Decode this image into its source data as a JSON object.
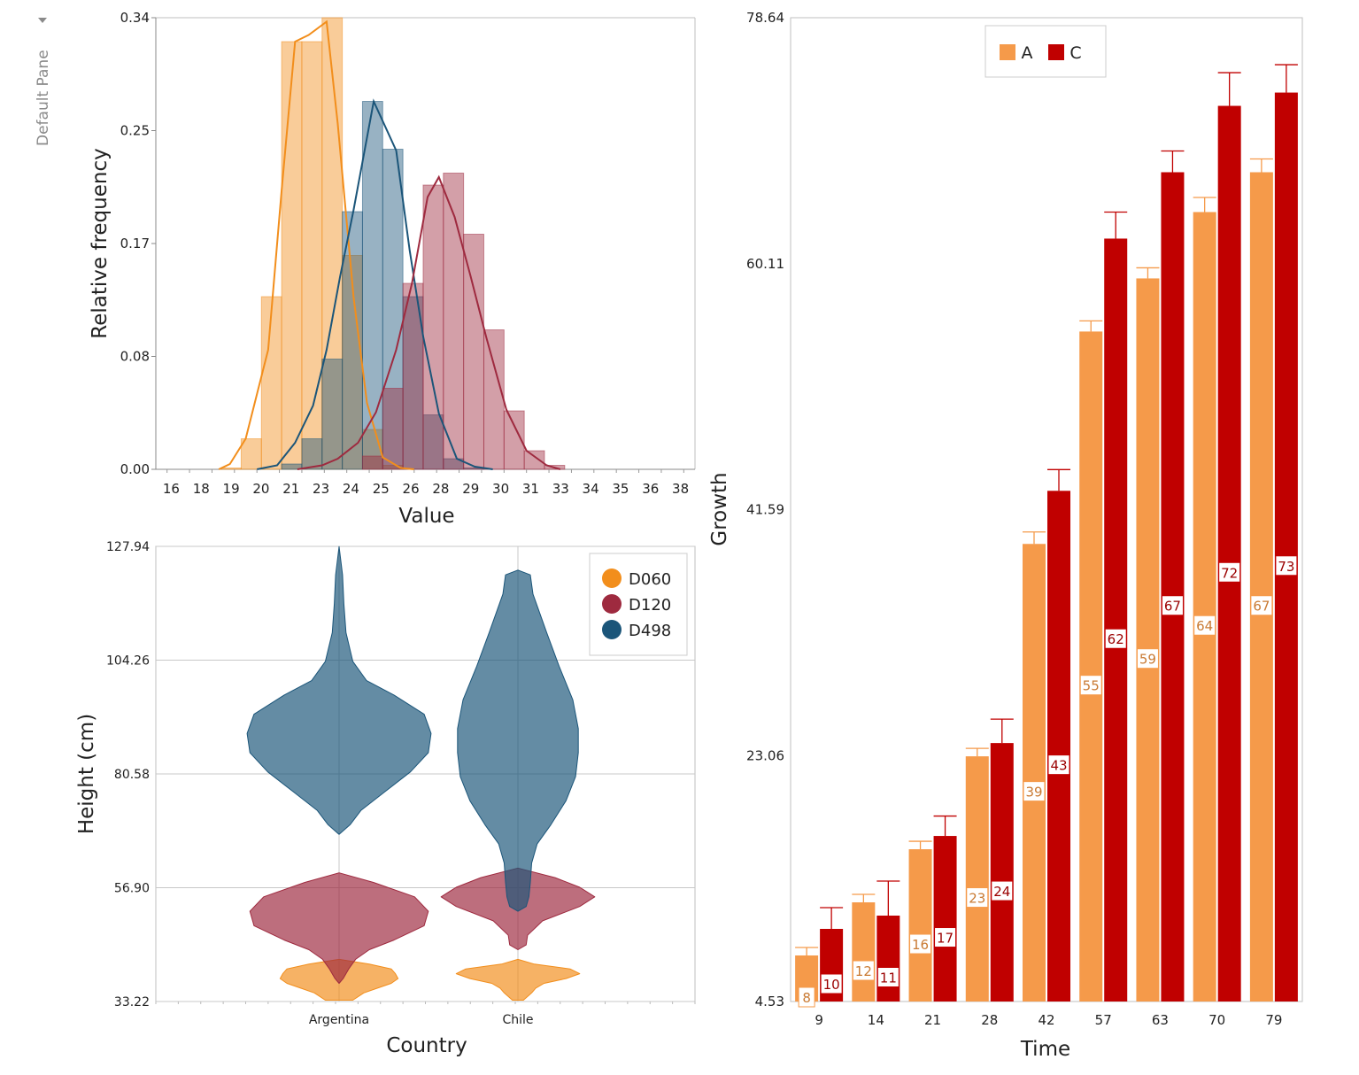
{
  "pane": {
    "label": "Default Pane",
    "dropdown_icon": "triangle-down-icon"
  },
  "chart_data": [
    {
      "id": "histogram",
      "type": "histogram",
      "xlabel": "Value",
      "ylabel": "Relative frequency",
      "xlim": [
        15,
        39
      ],
      "ylim": [
        0,
        0.34
      ],
      "y_ticks": [
        "0.00",
        "0.08",
        "0.17",
        "0.25",
        "0.34"
      ],
      "x_ticks": [
        "16",
        "18",
        "19",
        "20",
        "21",
        "23",
        "24",
        "25",
        "26",
        "28",
        "29",
        "30",
        "31",
        "33",
        "34",
        "35",
        "36",
        "38"
      ],
      "bin_width": 0.9,
      "series": [
        {
          "name": "D060",
          "color": "#f28e1c",
          "bins": [
            [
              17.9,
              0.001
            ],
            [
              18.8,
              0.023
            ],
            [
              19.7,
              0.13
            ],
            [
              20.6,
              0.322
            ],
            [
              21.5,
              0.322
            ],
            [
              22.4,
              0.34
            ],
            [
              23.3,
              0.161
            ],
            [
              24.2,
              0.03
            ],
            [
              25.1,
              0.003
            ]
          ],
          "curve": [
            [
              17.8,
              0.0
            ],
            [
              18.3,
              0.004
            ],
            [
              19.0,
              0.023
            ],
            [
              20.0,
              0.09
            ],
            [
              20.6,
              0.21
            ],
            [
              21.2,
              0.322
            ],
            [
              21.8,
              0.327
            ],
            [
              22.6,
              0.337
            ],
            [
              23.1,
              0.26
            ],
            [
              23.8,
              0.13
            ],
            [
              24.4,
              0.05
            ],
            [
              25.1,
              0.009
            ],
            [
              25.9,
              0.001
            ],
            [
              26.5,
              0.0
            ]
          ]
        },
        {
          "name": "D498",
          "color": "#1b5579",
          "bins": [
            [
              20.6,
              0.004
            ],
            [
              21.5,
              0.023
            ],
            [
              22.4,
              0.083
            ],
            [
              23.3,
              0.194
            ],
            [
              24.2,
              0.277
            ],
            [
              25.1,
              0.241
            ],
            [
              26.0,
              0.13
            ],
            [
              26.9,
              0.041
            ],
            [
              27.8,
              0.008
            ],
            [
              28.7,
              0.001
            ]
          ],
          "curve": [
            [
              19.5,
              0.0
            ],
            [
              20.4,
              0.003
            ],
            [
              21.2,
              0.02
            ],
            [
              22.0,
              0.048
            ],
            [
              22.6,
              0.09
            ],
            [
              23.2,
              0.145
            ],
            [
              23.8,
              0.195
            ],
            [
              24.7,
              0.277
            ],
            [
              25.7,
              0.24
            ],
            [
              26.3,
              0.165
            ],
            [
              26.9,
              0.1
            ],
            [
              27.6,
              0.042
            ],
            [
              28.4,
              0.008
            ],
            [
              29.2,
              0.002
            ],
            [
              30.0,
              0.0
            ]
          ]
        },
        {
          "name": "D120",
          "color": "#9e2a3f",
          "bins": [
            [
              23.3,
              0.0
            ],
            [
              24.2,
              0.01
            ],
            [
              25.1,
              0.061
            ],
            [
              26.0,
              0.14
            ],
            [
              26.9,
              0.214
            ],
            [
              27.8,
              0.223
            ],
            [
              28.7,
              0.177
            ],
            [
              29.6,
              0.105
            ],
            [
              30.5,
              0.044
            ],
            [
              31.4,
              0.014
            ],
            [
              32.3,
              0.003
            ]
          ],
          "curve": [
            [
              21.3,
              0.0
            ],
            [
              22.4,
              0.003
            ],
            [
              23.1,
              0.008
            ],
            [
              24.0,
              0.02
            ],
            [
              24.8,
              0.043
            ],
            [
              25.7,
              0.09
            ],
            [
              26.4,
              0.14
            ],
            [
              27.1,
              0.205
            ],
            [
              27.6,
              0.22
            ],
            [
              28.3,
              0.19
            ],
            [
              29.0,
              0.146
            ],
            [
              29.7,
              0.1
            ],
            [
              30.6,
              0.045
            ],
            [
              31.5,
              0.014
            ],
            [
              32.4,
              0.003
            ],
            [
              33.0,
              0.0
            ]
          ]
        }
      ]
    },
    {
      "id": "violin",
      "type": "violin",
      "xlabel": "Country",
      "ylabel": "Height (cm)",
      "categories": [
        "Argentina",
        "Chile"
      ],
      "ylim": [
        33.22,
        127.94
      ],
      "y_ticks": [
        "33.22",
        "56.90",
        "80.58",
        "104.26",
        "127.94"
      ],
      "legend": {
        "position": "top-right",
        "entries": [
          "D060",
          "D120",
          "D498"
        ]
      },
      "series": [
        {
          "name": "D060",
          "color": "#f28e1c",
          "profiles": [
            [
              [
                33.5,
                0.1
              ],
              [
                35,
                0.18
              ],
              [
                36,
                0.28
              ],
              [
                37,
                0.38
              ],
              [
                38,
                0.43
              ],
              [
                39,
                0.41
              ],
              [
                40,
                0.38
              ],
              [
                41,
                0.22
              ],
              [
                42,
                0.0
              ]
            ],
            [
              [
                33.5,
                0.04
              ],
              [
                35,
                0.1
              ],
              [
                36,
                0.13
              ],
              [
                37,
                0.19
              ],
              [
                38,
                0.35
              ],
              [
                39,
                0.45
              ],
              [
                40,
                0.38
              ],
              [
                41,
                0.12
              ],
              [
                42,
                0.0
              ]
            ]
          ]
        },
        {
          "name": "D120",
          "color": "#9e2a3f",
          "profiles": [
            [
              [
                37,
                0.0
              ],
              [
                38,
                0.03
              ],
              [
                40,
                0.07
              ],
              [
                42,
                0.12
              ],
              [
                44,
                0.22
              ],
              [
                46,
                0.4
              ],
              [
                49,
                0.62
              ],
              [
                52,
                0.65
              ],
              [
                55,
                0.55
              ],
              [
                58,
                0.25
              ],
              [
                60,
                0.0
              ]
            ],
            [
              [
                44,
                0.0
              ],
              [
                45,
                0.06
              ],
              [
                47,
                0.07
              ],
              [
                50,
                0.18
              ],
              [
                53,
                0.45
              ],
              [
                55,
                0.56
              ],
              [
                57,
                0.45
              ],
              [
                59,
                0.27
              ],
              [
                61,
                0.0
              ]
            ]
          ]
        },
        {
          "name": "D498",
          "color": "#1b5579",
          "profiles": [
            [
              [
                68,
                0.0
              ],
              [
                70,
                0.08
              ],
              [
                73,
                0.16
              ],
              [
                77,
                0.34
              ],
              [
                81,
                0.52
              ],
              [
                85,
                0.65
              ],
              [
                89,
                0.67
              ],
              [
                93,
                0.62
              ],
              [
                97,
                0.4
              ],
              [
                100,
                0.2
              ],
              [
                104,
                0.1
              ],
              [
                110,
                0.05
              ],
              [
                116,
                0.035
              ],
              [
                122,
                0.025
              ],
              [
                127.9,
                0.0
              ]
            ],
            [
              [
                52,
                0.0
              ],
              [
                53,
                0.06
              ],
              [
                55,
                0.08
              ],
              [
                58,
                0.09
              ],
              [
                62,
                0.1
              ],
              [
                66,
                0.14
              ],
              [
                70,
                0.24
              ],
              [
                75,
                0.35
              ],
              [
                80,
                0.42
              ],
              [
                85,
                0.44
              ],
              [
                90,
                0.44
              ],
              [
                96,
                0.4
              ],
              [
                103,
                0.3
              ],
              [
                110,
                0.21
              ],
              [
                118,
                0.11
              ],
              [
                122,
                0.09
              ],
              [
                123,
                0.0
              ]
            ]
          ]
        }
      ]
    },
    {
      "id": "bars",
      "type": "bar",
      "xlabel": "Time",
      "ylabel": "Growth",
      "categories": [
        "9",
        "14",
        "21",
        "28",
        "42",
        "57",
        "63",
        "70",
        "79"
      ],
      "ylim": [
        4.53,
        78.64
      ],
      "y_ticks": [
        "4.53",
        "23.06",
        "41.59",
        "60.11",
        "78.64"
      ],
      "legend": {
        "position": "top-left",
        "entries": [
          "A",
          "C"
        ]
      },
      "series": [
        {
          "name": "A",
          "color": "#f59a4a",
          "label_color": "#c97a33",
          "values": [
            8,
            12,
            16,
            23,
            39,
            55,
            59,
            64,
            67
          ],
          "labels": [
            "8",
            "12",
            "16",
            "23",
            "39",
            "55",
            "59",
            "64",
            "67"
          ],
          "error": [
            0.6,
            0.6,
            0.6,
            0.6,
            0.9,
            0.8,
            0.8,
            1.1,
            1.0
          ]
        },
        {
          "name": "C",
          "color": "#c00000",
          "label_color": "#9a0000",
          "values": [
            10,
            11,
            17,
            24,
            43,
            62,
            67,
            72,
            73
          ],
          "labels": [
            "10",
            "11",
            "17",
            "24",
            "43",
            "62",
            "67",
            "72",
            "73"
          ],
          "error": [
            1.6,
            2.6,
            1.5,
            1.8,
            1.6,
            2.0,
            1.6,
            2.5,
            2.1
          ]
        }
      ]
    }
  ]
}
